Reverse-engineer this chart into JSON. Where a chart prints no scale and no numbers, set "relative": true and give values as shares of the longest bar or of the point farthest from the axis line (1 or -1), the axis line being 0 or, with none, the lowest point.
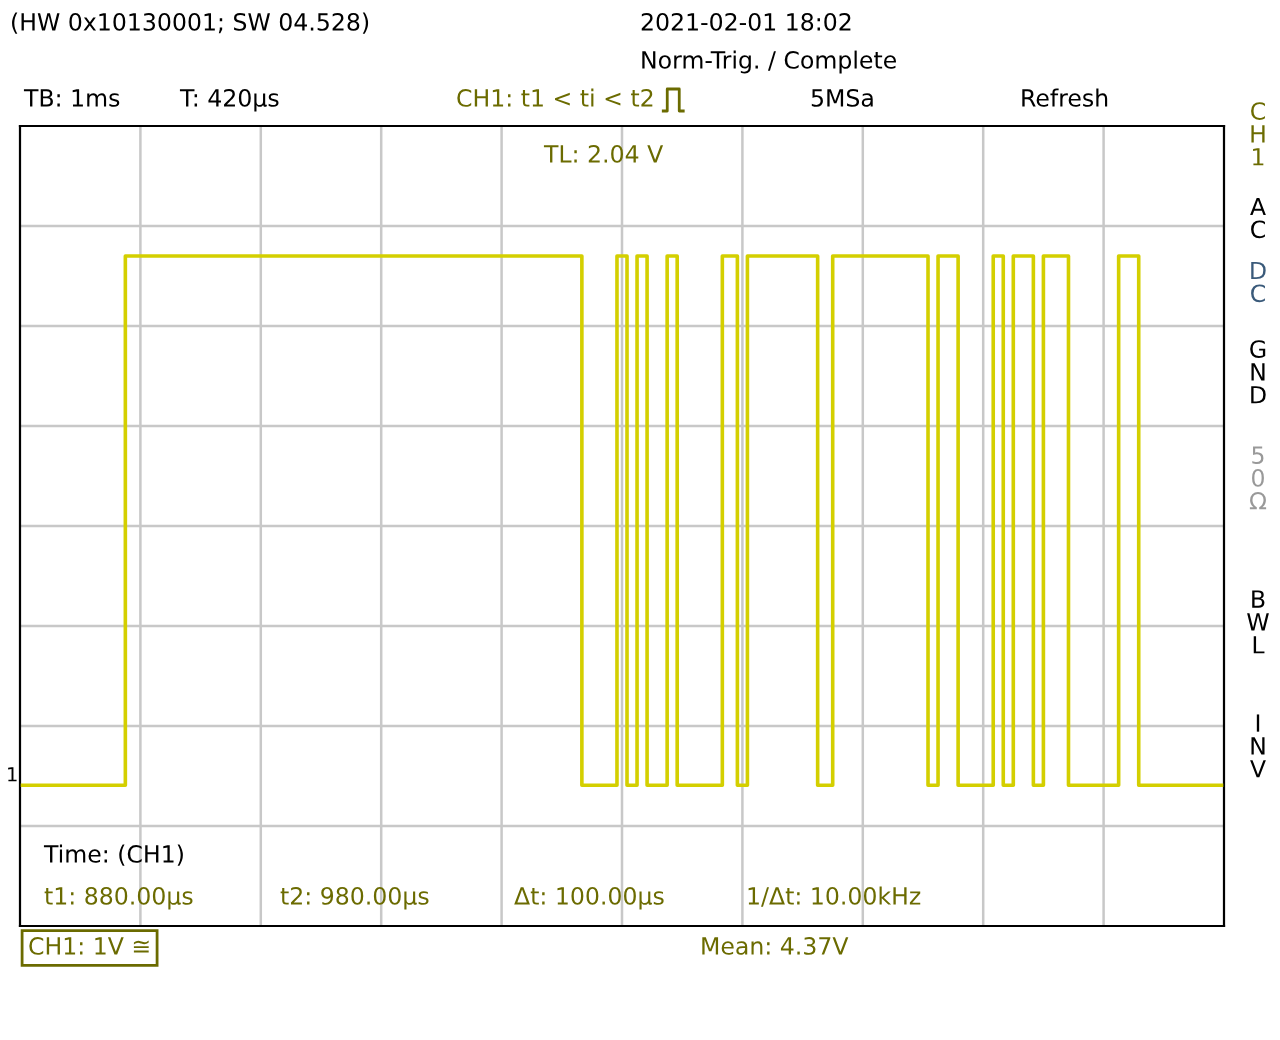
{
  "chart_data": {
    "type": "step",
    "relative": true,
    "grid": true,
    "categories": [
      null,
      null,
      null,
      null,
      null,
      null,
      null,
      null,
      null,
      null,
      null,
      null,
      null,
      null,
      null,
      null,
      null,
      null,
      null,
      null,
      null,
      null,
      null,
      null,
      null,
      null,
      null,
      null,
      null,
      null,
      null,
      null,
      null,
      null,
      null,
      null,
      null,
      null,
      null,
      null,
      null,
      null,
      null,
      null,
      null,
      null,
      null,
      null,
      null,
      null,
      null,
      null,
      null,
      null,
      null,
      null,
      null,
      null,
      null,
      null,
      null,
      null,
      null,
      null,
      null,
      null,
      null,
      null,
      null,
      null,
      null,
      null,
      null,
      null,
      null,
      null,
      null,
      null,
      null,
      null,
      null,
      null,
      null,
      null,
      null,
      null,
      null,
      null,
      null,
      null,
      null,
      null,
      null,
      null,
      null,
      null,
      null,
      null,
      null,
      null,
      null,
      null,
      null,
      null,
      null,
      null,
      null,
      null,
      null,
      null,
      null,
      null,
      null,
      null,
      null,
      null,
      null,
      null,
      null,
      null,
      null,
      null,
      null,
      null,
      null,
      null,
      null,
      null,
      null,
      null,
      null,
      null,
      null,
      null,
      null,
      null,
      null,
      null,
      null,
      null,
      null,
      null,
      null,
      null,
      null,
      null,
      null,
      null,
      null,
      null,
      null,
      null,
      null,
      null,
      null,
      null,
      null,
      null,
      null,
      null,
      null,
      null,
      null,
      null,
      null,
      null,
      null,
      null,
      null,
      null,
      null,
      null,
      null,
      null,
      null,
      null,
      null,
      null,
      null,
      null,
      null,
      null,
      null,
      null,
      null,
      null,
      null,
      null,
      null,
      null,
      null,
      null,
      null,
      null,
      null,
      null,
      null,
      null,
      null,
      null,
      null,
      null,
      null,
      null,
      null,
      null,
      null,
      null,
      null,
      null,
      null,
      null,
      null,
      null,
      null,
      null,
      null,
      null,
      null,
      null,
      null,
      null,
      null,
      null,
      null,
      null,
      null,
      null,
      null,
      null,
      null,
      null,
      null,
      null,
      null,
      null,
      null,
      null,
      null,
      null
    ],
    "series": [
      {
        "color": "#d4cf00",
        "values": [
          0.21,
          0.21,
          0.21,
          0.21,
          0.21,
          0.21,
          0.21,
          0.21,
          0.21,
          0.21,
          0.21,
          0.21,
          0.21,
          0.21,
          0.21,
          0.21,
          0.21,
          0.21,
          0.21,
          0.21,
          0.21,
          1,
          1,
          1,
          1,
          1,
          1,
          1,
          1,
          1,
          1,
          1,
          1,
          1,
          1,
          1,
          1,
          1,
          1,
          1,
          1,
          1,
          1,
          1,
          1,
          1,
          1,
          1,
          1,
          1,
          1,
          1,
          1,
          1,
          1,
          1,
          1,
          1,
          1,
          1,
          1,
          1,
          1,
          1,
          1,
          1,
          1,
          1,
          1,
          1,
          1,
          1,
          1,
          1,
          1,
          1,
          1,
          1,
          1,
          1,
          1,
          1,
          1,
          1,
          1,
          1,
          1,
          1,
          1,
          1,
          1,
          1,
          1,
          1,
          1,
          1,
          1,
          1,
          1,
          1,
          1,
          1,
          1,
          1,
          1,
          1,
          1,
          1,
          1,
          1,
          1,
          1,
          0.21,
          0.21,
          0.21,
          0.21,
          0.21,
          0.21,
          0.21,
          1,
          1,
          0.21,
          0.21,
          1,
          1,
          0.21,
          0.21,
          0.21,
          0.21,
          1,
          1,
          0.21,
          0.21,
          0.21,
          0.21,
          0.21,
          0.21,
          0.21,
          0.21,
          0.21,
          1,
          1,
          1,
          0.21,
          0.21,
          1,
          1,
          1,
          1,
          1,
          1,
          1,
          1,
          1,
          1,
          1,
          1,
          1,
          1,
          0.21,
          0.21,
          0.21,
          1,
          1,
          1,
          1,
          1,
          1,
          1,
          1,
          1,
          1,
          1,
          1,
          1,
          1,
          1,
          1,
          1,
          1,
          1,
          0.21,
          0.21,
          1,
          1,
          1,
          1,
          0.21,
          0.21,
          0.21,
          0.21,
          0.21,
          0.21,
          0.21,
          1,
          1,
          0.21,
          0.21,
          1,
          1,
          1,
          1,
          0.21,
          0.21,
          1,
          1,
          1,
          1,
          1,
          0.21,
          0.21,
          0.21,
          0.21,
          0.21,
          0.21,
          0.21,
          0.21,
          0.21,
          0.21,
          1,
          1,
          1,
          1,
          0.21,
          0.21,
          0.21,
          0.21,
          0.21,
          0.21,
          0.21,
          0.21,
          0.21,
          0.21,
          0.21,
          0.21,
          0.21,
          0.21,
          0.21,
          0.21,
          0.21
        ]
      }
    ],
    "annotations": [
      "(HW 0x10130001; SW 04.528)",
      "2021-02-01 18:02",
      "Norm-Trig. / Complete",
      "TB: 1ms",
      "T: 420µs",
      "CH1: t1 < ti < t2",
      "5MSa",
      "Refresh",
      "TL: 2.04 V",
      "Time: (CH1)",
      "t1: 880.00µs",
      "t2: 980.00µs",
      "Δt: 100.00µs",
      "1/Δt: 10.00kHz",
      "CH1: 1V ≅",
      "Mean: 4.37V",
      "CH1",
      "AC",
      "DC",
      "GND",
      "50Ω",
      "BWL",
      "INV",
      "1"
    ]
  }
}
